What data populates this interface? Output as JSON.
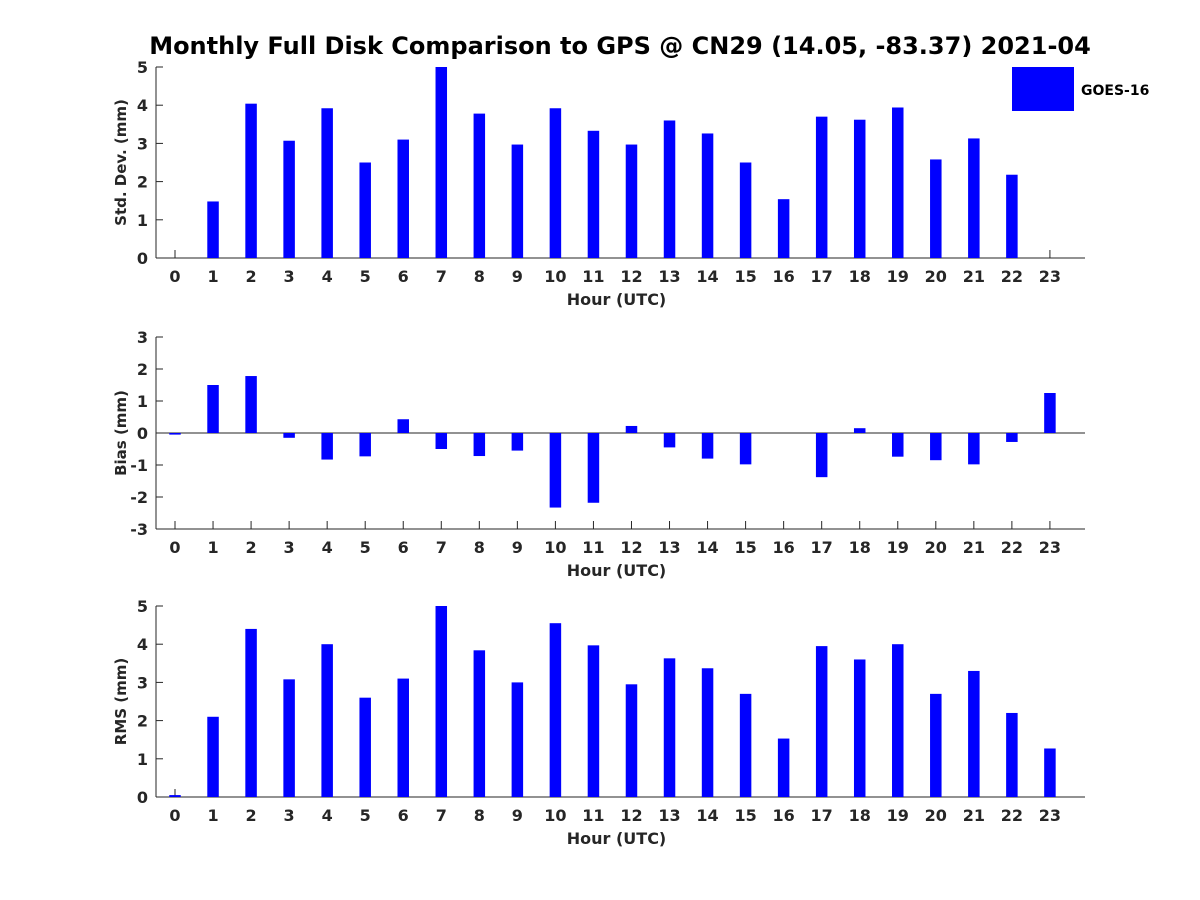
{
  "title": "Monthly Full Disk Comparison to GPS @ CN29 (14.05, -83.37) 2021-04",
  "legend": {
    "label": "GOES-16",
    "color": "#0000ff"
  },
  "chart_data": [
    {
      "type": "bar",
      "ylabel": "Std. Dev. (mm)",
      "xlabel": "Hour (UTC)",
      "ylim": [
        0,
        5
      ],
      "yticks": [
        0,
        1,
        2,
        3,
        4,
        5
      ],
      "categories": [
        0,
        1,
        2,
        3,
        4,
        5,
        6,
        7,
        8,
        9,
        10,
        11,
        12,
        13,
        14,
        15,
        16,
        17,
        18,
        19,
        20,
        21,
        22,
        23
      ],
      "series": [
        {
          "name": "GOES-16",
          "color": "#0000ff",
          "values": [
            0,
            1.48,
            4.04,
            3.07,
            3.92,
            2.5,
            3.1,
            5.0,
            3.78,
            2.97,
            3.92,
            3.33,
            2.97,
            3.6,
            3.26,
            2.5,
            1.54,
            3.7,
            3.62,
            3.94,
            2.58,
            3.13,
            2.18,
            0
          ]
        }
      ]
    },
    {
      "type": "bar",
      "ylabel": "Bias (mm)",
      "xlabel": "Hour (UTC)",
      "ylim": [
        -3,
        3
      ],
      "yticks": [
        -3,
        -2,
        -1,
        0,
        1,
        2,
        3
      ],
      "zeroline": true,
      "categories": [
        0,
        1,
        2,
        3,
        4,
        5,
        6,
        7,
        8,
        9,
        10,
        11,
        12,
        13,
        14,
        15,
        16,
        17,
        18,
        19,
        20,
        21,
        22,
        23
      ],
      "series": [
        {
          "name": "GOES-16",
          "color": "#0000ff",
          "values": [
            -0.05,
            1.5,
            1.78,
            -0.15,
            -0.83,
            -0.73,
            0.43,
            -0.5,
            -0.72,
            -0.55,
            -2.33,
            -2.18,
            0.22,
            -0.45,
            -0.8,
            -0.98,
            0,
            -1.38,
            0.15,
            -0.74,
            -0.85,
            -0.98,
            -0.28,
            1.25
          ]
        }
      ]
    },
    {
      "type": "bar",
      "ylabel": "RMS (mm)",
      "xlabel": "Hour (UTC)",
      "ylim": [
        0,
        5
      ],
      "yticks": [
        0,
        1,
        2,
        3,
        4,
        5
      ],
      "categories": [
        0,
        1,
        2,
        3,
        4,
        5,
        6,
        7,
        8,
        9,
        10,
        11,
        12,
        13,
        14,
        15,
        16,
        17,
        18,
        19,
        20,
        21,
        22,
        23
      ],
      "series": [
        {
          "name": "GOES-16",
          "color": "#0000ff",
          "values": [
            0.05,
            2.1,
            4.4,
            3.08,
            4.0,
            2.6,
            3.1,
            5.0,
            3.84,
            3.0,
            4.55,
            3.97,
            2.95,
            3.63,
            3.37,
            2.7,
            1.53,
            3.95,
            3.6,
            4.0,
            2.7,
            3.3,
            2.2,
            1.27
          ]
        }
      ]
    }
  ]
}
